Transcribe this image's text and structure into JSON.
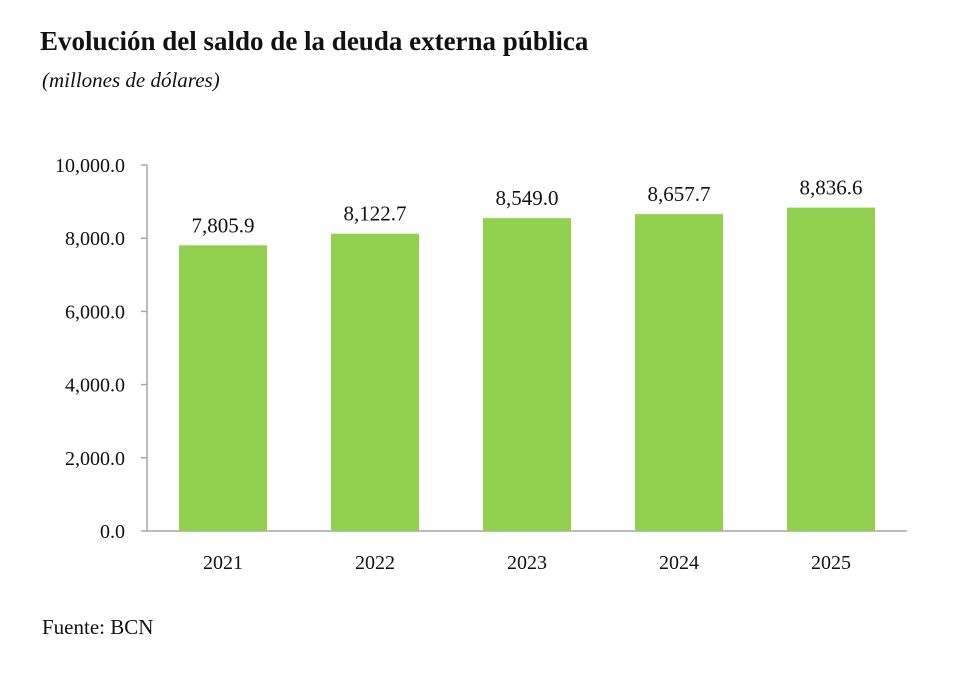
{
  "chart_data": {
    "type": "bar",
    "title": "Evolución del saldo de la deuda externa pública",
    "subtitle": "(millones de dólares)",
    "categories": [
      "2021",
      "2022",
      "2023",
      "2024",
      "2025"
    ],
    "values": [
      7805.9,
      8122.7,
      8549.0,
      8657.7,
      8836.6
    ],
    "value_labels": [
      "7,805.9",
      "8,122.7",
      "8,549.0",
      "8,657.7",
      "8,836.6"
    ],
    "ylim": [
      0,
      10000
    ],
    "yticks": [
      0,
      2000,
      4000,
      6000,
      8000,
      10000
    ],
    "ytick_labels": [
      "0.0",
      "2,000.0",
      "4,000.0",
      "6,000.0",
      "8,000.0",
      "10,000.0"
    ],
    "xlabel": "",
    "ylabel": "",
    "grid": false,
    "legend": "none",
    "bar_color": "#92d050",
    "axis_color": "#a6a6a6"
  },
  "source": "Fuente: BCN"
}
